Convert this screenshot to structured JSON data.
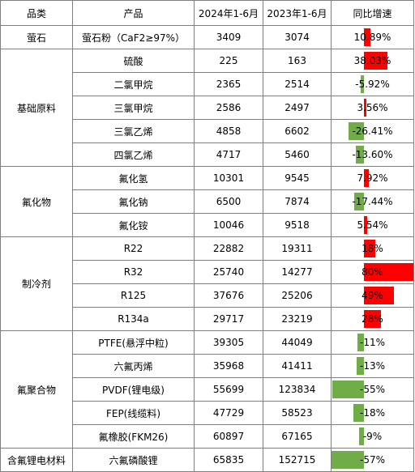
{
  "colors": {
    "positive": "#ff0000",
    "negative": "#70ad47",
    "border": "#7f7f7f"
  },
  "header": {
    "category": "品类",
    "product": "产品",
    "y2024": "2024年1-6月",
    "y2023": "2023年1-6月",
    "growth": "同比增速"
  },
  "groups": [
    {
      "category": "萤石",
      "rows": [
        {
          "product": "萤石粉（CaF2≥97%）",
          "v2024": "3409",
          "v2023": "3074",
          "growth_text": "10.89%",
          "growth": 10.89
        }
      ]
    },
    {
      "category": "基础原料",
      "rows": [
        {
          "product": "硫酸",
          "v2024": "225",
          "v2023": "163",
          "growth_text": "38.03%",
          "growth": 38.03
        },
        {
          "product": "二氯甲烷",
          "v2024": "2365",
          "v2023": "2514",
          "growth_text": "-5.92%",
          "growth": -5.92
        },
        {
          "product": "三氯甲烷",
          "v2024": "2586",
          "v2023": "2497",
          "growth_text": "3.56%",
          "growth": 3.56
        },
        {
          "product": "三氯乙烯",
          "v2024": "4858",
          "v2023": "6602",
          "growth_text": "-26.41%",
          "growth": -26.41
        },
        {
          "product": "四氯乙烯",
          "v2024": "4717",
          "v2023": "5460",
          "growth_text": "-13.60%",
          "growth": -13.6
        }
      ]
    },
    {
      "category": "氟化物",
      "rows": [
        {
          "product": "氟化氢",
          "v2024": "10301",
          "v2023": "9545",
          "growth_text": "7.92%",
          "growth": 7.92
        },
        {
          "product": "氟化钠",
          "v2024": "6500",
          "v2023": "7874",
          "growth_text": "-17.44%",
          "growth": -17.44
        },
        {
          "product": "氟化铵",
          "v2024": "10046",
          "v2023": "9518",
          "growth_text": "5.54%",
          "growth": 5.54
        }
      ]
    },
    {
      "category": "制冷剂",
      "rows": [
        {
          "product": "R22",
          "v2024": "22882",
          "v2023": "19311",
          "growth_text": "18%",
          "growth": 18
        },
        {
          "product": "R32",
          "v2024": "25740",
          "v2023": "14277",
          "growth_text": "80%",
          "growth": 80
        },
        {
          "product": "R125",
          "v2024": "37676",
          "v2023": "25206",
          "growth_text": "49%",
          "growth": 49
        },
        {
          "product": "R134a",
          "v2024": "29717",
          "v2023": "23219",
          "growth_text": "28%",
          "growth": 28
        }
      ]
    },
    {
      "category": "氟聚合物",
      "rows": [
        {
          "product": "PTFE(悬浮中粒)",
          "v2024": "39305",
          "v2023": "44049",
          "growth_text": "-11%",
          "growth": -11
        },
        {
          "product": "六氟丙烯",
          "v2024": "35968",
          "v2023": "41411",
          "growth_text": "-13%",
          "growth": -13
        },
        {
          "product": "PVDF(锂电级)",
          "v2024": "55699",
          "v2023": "123834",
          "growth_text": "-55%",
          "growth": -55
        },
        {
          "product": "FEP(线缆料)",
          "v2024": "47729",
          "v2023": "58523",
          "growth_text": "-18%",
          "growth": -18
        },
        {
          "product": "氟橡胶(FKM26)",
          "v2024": "60897",
          "v2023": "67165",
          "growth_text": "-9%",
          "growth": -9
        }
      ]
    },
    {
      "category": "含氟锂电材料",
      "rows": [
        {
          "product": "六氟磷酸锂",
          "v2024": "65835",
          "v2023": "152715",
          "growth_text": "-57%",
          "growth": -57
        }
      ]
    }
  ]
}
